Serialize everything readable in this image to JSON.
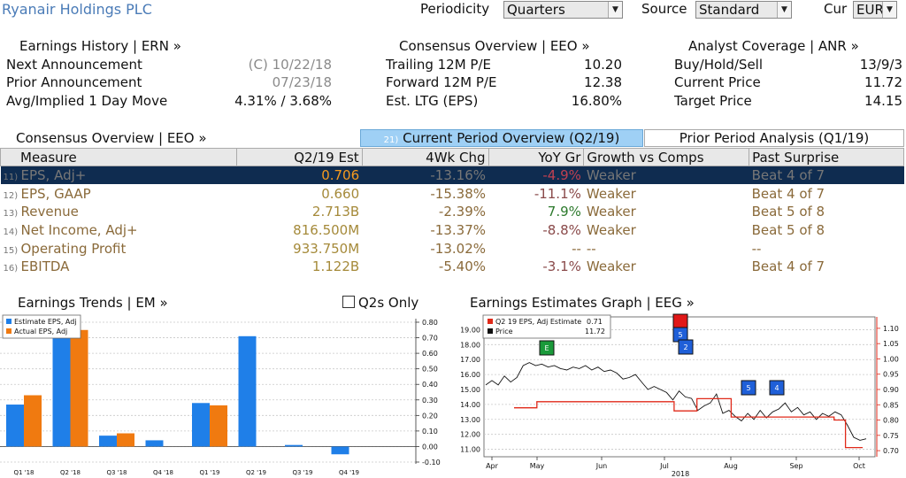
{
  "header": {
    "title": "Ryanair Holdings PLC",
    "periodicity_label": "Periodicity",
    "periodicity_value": "Quarters",
    "source_label": "Source",
    "source_value": "Standard",
    "cur_label": "Cur",
    "cur_value": "EUR"
  },
  "earnings_history": {
    "title": "Earnings History | ERN »",
    "rows": [
      {
        "label": "Next Announcement",
        "value": "(C)  10/22/18"
      },
      {
        "label": "Prior Announcement",
        "value": "07/23/18"
      },
      {
        "label": "Avg/Implied 1 Day Move",
        "value": "4.31% / 3.68%"
      }
    ]
  },
  "consensus_top": {
    "title": "Consensus Overview | EEO »",
    "rows": [
      {
        "label": "Trailing 12M P/E",
        "value": "10.20"
      },
      {
        "label": "Forward 12M P/E",
        "value": "12.38"
      },
      {
        "label": "Est. LTG (EPS)",
        "value": "16.80%"
      }
    ]
  },
  "analyst": {
    "title": "Analyst Coverage | ANR »",
    "rows": [
      {
        "label": "Buy/Hold/Sell",
        "value": "13/9/3"
      },
      {
        "label": "Current Price",
        "value": "11.72"
      },
      {
        "label": "Target Price",
        "value": "14.15"
      }
    ]
  },
  "consensus_table": {
    "title": "Consensus Overview | EEO »",
    "tab_current_num": "21)",
    "tab_current": "Current Period Overview (Q2/19)",
    "tab_prior": "Prior Period Analysis (Q1/19)",
    "headers": [
      "Measure",
      "Q2/19 Est",
      "4Wk Chg",
      "YoY Gr",
      "Growth vs Comps",
      "Past Surprise"
    ],
    "rows": [
      {
        "idx": "11)",
        "measure": "EPS, Adj+",
        "est": "0.706",
        "chg": "-13.16%",
        "yoy": "-4.9%",
        "growth": "Weaker",
        "surprise": "Beat 4 of 7"
      },
      {
        "idx": "12)",
        "measure": "EPS, GAAP",
        "est": "0.660",
        "chg": "-15.38%",
        "yoy": "-11.1%",
        "growth": "Weaker",
        "surprise": "Beat 4 of 7"
      },
      {
        "idx": "13)",
        "measure": "Revenue",
        "est": "2.713B",
        "chg": "-2.39%",
        "yoy": "7.9%",
        "growth": "Weaker",
        "surprise": "Beat 5 of 8"
      },
      {
        "idx": "14)",
        "measure": "Net Income, Adj+",
        "est": "816.500M",
        "chg": "-13.37%",
        "yoy": "-8.8%",
        "growth": "Weaker",
        "surprise": "Beat 5 of 8"
      },
      {
        "idx": "15)",
        "measure": "Operating Profit",
        "est": "933.750M",
        "chg": "-13.02%",
        "yoy": "--",
        "growth": "--",
        "surprise": "--"
      },
      {
        "idx": "16)",
        "measure": "EBITDA",
        "est": "1.122B",
        "chg": "-5.40%",
        "yoy": "-3.1%",
        "growth": "Weaker",
        "surprise": "Beat 4 of 7"
      }
    ]
  },
  "trends": {
    "title": "Earnings Trends | EM »",
    "q2s_only": "Q2s Only"
  },
  "estimates_graph": {
    "title": "Earnings Estimates Graph | EEG »"
  },
  "colors": {
    "estimate": "#1f7fe8",
    "actual": "#f07a10",
    "selected_row_bg": "#0f2c50",
    "tab_active_bg": "#9fd0f5",
    "step_line": "#e02a1a",
    "marker_green": "#1a9a3a",
    "marker_blue": "#1f5fd8",
    "marker_red": "#e01818"
  },
  "chart_data": [
    {
      "type": "bar",
      "categories": [
        "Q1 '18",
        "Q2 '18",
        "Q3 '18",
        "Q4 '18",
        "Q1 '19",
        "Q2 '19",
        "Q3 '19",
        "Q4 '19"
      ],
      "series": [
        {
          "name": "Estimate EPS, Adj",
          "values": [
            0.27,
            0.72,
            0.07,
            0.04,
            0.28,
            0.71,
            0.01,
            -0.05
          ]
        },
        {
          "name": "Actual EPS, Adj",
          "values": [
            0.33,
            0.75,
            0.085,
            null,
            0.265,
            null,
            null,
            null
          ]
        }
      ],
      "ylim": [
        -0.1,
        0.8
      ],
      "yticks": [
        "0.80",
        "0.70",
        "0.60",
        "0.50",
        "0.40",
        "0.30",
        "0.20",
        "0.10",
        "0.00",
        "-0.10"
      ],
      "legend": "top-left"
    },
    {
      "type": "line",
      "x_labels": [
        "Apr",
        "May",
        "Jun",
        "Jul",
        "Aug",
        "Sep",
        "Oct"
      ],
      "x_year": "2018",
      "left_ticks": [
        "19.00",
        "18.00",
        "17.00",
        "16.00",
        "15.00",
        "14.00",
        "13.00",
        "12.00",
        "11.00"
      ],
      "right_ticks": [
        "1.10",
        "1.05",
        "1.00",
        "0.95",
        "0.90",
        "0.85",
        "0.80",
        "0.75",
        "0.70"
      ],
      "ylim_left": [
        10.5,
        19.5
      ],
      "ylim_right": [
        0.68,
        1.12
      ],
      "legend": [
        {
          "name": "Q2 19 EPS, Adj Estimate",
          "value": "0.71"
        },
        {
          "name": "Price",
          "value": "11.72"
        }
      ],
      "series_price": [
        15.3,
        15.6,
        15.3,
        15.9,
        15.5,
        15.8,
        16.6,
        16.8,
        16.6,
        16.7,
        16.5,
        16.6,
        16.4,
        16.3,
        16.5,
        16.4,
        16.6,
        16.3,
        16.5,
        16.2,
        16.3,
        16.1,
        15.7,
        15.8,
        16.0,
        15.5,
        15.0,
        15.2,
        15.0,
        14.8,
        14.3,
        14.9,
        14.5,
        14.4,
        13.6,
        13.9,
        14.1,
        14.7,
        13.4,
        13.6,
        13.2,
        12.9,
        13.4,
        13.0,
        13.6,
        13.1,
        13.5,
        13.7,
        14.1,
        13.5,
        13.8,
        13.3,
        13.5,
        13.0,
        13.4,
        13.2,
        13.5,
        13.3,
        12.6,
        11.8,
        11.6,
        11.7
      ],
      "series_estimate": [
        0.84,
        0.84,
        0.84,
        0.84,
        0.86,
        0.86,
        0.86,
        0.86,
        0.86,
        0.86,
        0.86,
        0.86,
        0.86,
        0.86,
        0.86,
        0.86,
        0.86,
        0.86,
        0.86,
        0.86,
        0.86,
        0.86,
        0.86,
        0.86,
        0.86,
        0.86,
        0.86,
        0.86,
        0.83,
        0.83,
        0.83,
        0.83,
        0.87,
        0.87,
        0.87,
        0.87,
        0.87,
        0.87,
        0.81,
        0.81,
        0.81,
        0.81,
        0.81,
        0.81,
        0.81,
        0.81,
        0.81,
        0.81,
        0.81,
        0.81,
        0.81,
        0.81,
        0.81,
        0.81,
        0.81,
        0.81,
        0.8,
        0.8,
        0.71,
        0.71,
        0.71,
        0.71
      ],
      "markers": [
        {
          "label": "E",
          "color": "green"
        },
        {
          "label": "",
          "color": "red"
        },
        {
          "label": "5",
          "color": "blue"
        },
        {
          "label": "2",
          "color": "blue"
        },
        {
          "label": "5",
          "color": "blue"
        },
        {
          "label": "4",
          "color": "blue"
        }
      ]
    }
  ]
}
